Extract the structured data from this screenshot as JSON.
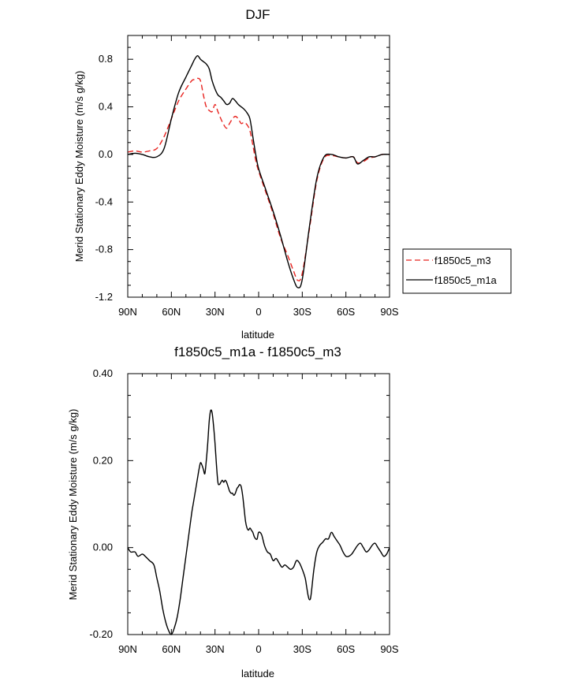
{
  "chart_data": [
    {
      "type": "line",
      "title": "DJF",
      "xlabel": "latitude",
      "ylabel": "Merid Stationary Eddy Moisture (m/s g/kg)",
      "xlim": [
        90,
        -90
      ],
      "ylim": [
        -1.2,
        1.0
      ],
      "xticks": [
        90,
        60,
        30,
        0,
        -30,
        -60,
        -90
      ],
      "xtick_labels": [
        "90N",
        "60N",
        "30N",
        "0",
        "30S",
        "60S",
        "90S"
      ],
      "yticks": [
        -1.2,
        -0.8,
        -0.4,
        0.0,
        0.4,
        0.8
      ],
      "ytick_labels": [
        "-1.2",
        "-0.8",
        "-0.4",
        "0.0",
        "0.4",
        "0.8"
      ],
      "legend": [
        "f1850c5_m3",
        "f1850c5_m1a"
      ],
      "series": [
        {
          "name": "f1850c5_m3",
          "color": "#e8231f",
          "dash": true,
          "x": [
            90,
            85,
            80,
            75,
            70,
            65,
            60,
            55,
            50,
            46,
            44,
            42,
            40,
            38,
            36,
            34,
            32,
            30,
            28,
            26,
            24,
            22,
            20,
            18,
            16,
            14,
            12,
            10,
            8,
            6,
            4,
            2,
            0,
            -5,
            -10,
            -15,
            -20,
            -24,
            -27,
            -30,
            -35,
            -40,
            -45,
            -50,
            -55,
            -60,
            -65,
            -68,
            -72,
            -76,
            -80,
            -85,
            -90
          ],
          "y": [
            0.02,
            0.03,
            0.02,
            0.03,
            0.05,
            0.15,
            0.3,
            0.45,
            0.55,
            0.62,
            0.63,
            0.64,
            0.62,
            0.5,
            0.4,
            0.37,
            0.36,
            0.42,
            0.36,
            0.3,
            0.25,
            0.22,
            0.26,
            0.3,
            0.32,
            0.3,
            0.26,
            0.27,
            0.25,
            0.2,
            0.08,
            -0.05,
            -0.14,
            -0.32,
            -0.5,
            -0.7,
            -0.85,
            -0.98,
            -1.06,
            -1.0,
            -0.62,
            -0.22,
            -0.03,
            -0.01,
            -0.02,
            -0.03,
            -0.02,
            -0.07,
            -0.06,
            -0.03,
            -0.02,
            0.0,
            0.0
          ]
        },
        {
          "name": "f1850c5_m1a",
          "color": "#000000",
          "dash": false,
          "x": [
            90,
            85,
            80,
            75,
            70,
            65,
            60,
            55,
            50,
            46,
            44,
            42,
            40,
            38,
            36,
            34,
            32,
            30,
            28,
            26,
            24,
            22,
            20,
            18,
            16,
            14,
            12,
            10,
            8,
            6,
            4,
            2,
            0,
            -5,
            -10,
            -15,
            -20,
            -24,
            -27,
            -30,
            -35,
            -40,
            -45,
            -50,
            -55,
            -60,
            -65,
            -68,
            -72,
            -76,
            -80,
            -85,
            -90
          ],
          "y": [
            0.0,
            0.01,
            0.0,
            -0.02,
            -0.02,
            0.05,
            0.3,
            0.52,
            0.65,
            0.75,
            0.8,
            0.83,
            0.8,
            0.78,
            0.76,
            0.72,
            0.62,
            0.55,
            0.5,
            0.48,
            0.45,
            0.42,
            0.43,
            0.47,
            0.45,
            0.42,
            0.4,
            0.38,
            0.35,
            0.3,
            0.15,
            0.0,
            -0.12,
            -0.3,
            -0.48,
            -0.68,
            -0.9,
            -1.05,
            -1.12,
            -1.05,
            -0.6,
            -0.2,
            -0.02,
            0.0,
            -0.02,
            -0.03,
            -0.02,
            -0.08,
            -0.05,
            -0.02,
            -0.02,
            0.0,
            0.0
          ]
        }
      ]
    },
    {
      "type": "line",
      "title": "f1850c5_m1a - f1850c5_m3",
      "xlabel": "latitude",
      "ylabel": "Merid Stationary Eddy Moisture (m/s g/kg)",
      "xlim": [
        90,
        -90
      ],
      "ylim": [
        -0.2,
        0.4
      ],
      "xticks": [
        90,
        60,
        30,
        0,
        -30,
        -60,
        -90
      ],
      "xtick_labels": [
        "90N",
        "60N",
        "30N",
        "0",
        "30S",
        "60S",
        "90S"
      ],
      "yticks": [
        -0.2,
        0.0,
        0.2,
        0.4
      ],
      "ytick_labels": [
        "-0.20",
        "0.00",
        "0.20",
        "0.40"
      ],
      "series": [
        {
          "name": "f1850c5_m1a - f1850c5_m3",
          "color": "#000000",
          "dash": false,
          "x": [
            90,
            88,
            85,
            83,
            80,
            78,
            75,
            72,
            70,
            68,
            66,
            64,
            62,
            60,
            58,
            56,
            54,
            52,
            50,
            48,
            46,
            45,
            44,
            43,
            42,
            41,
            40,
            39,
            38,
            37,
            36,
            35,
            34,
            33,
            32,
            31,
            30,
            29,
            28,
            27,
            26,
            25,
            24,
            23,
            22,
            21,
            20,
            19,
            18,
            17,
            16,
            15,
            14,
            13,
            12,
            11,
            10,
            9,
            8,
            7,
            6,
            5,
            4,
            3,
            2,
            1,
            0,
            -2,
            -4,
            -6,
            -8,
            -10,
            -12,
            -14,
            -16,
            -18,
            -20,
            -22,
            -24,
            -26,
            -28,
            -30,
            -32,
            -33,
            -34,
            -35,
            -36,
            -38,
            -40,
            -42,
            -44,
            -46,
            -48,
            -50,
            -52,
            -54,
            -56,
            -58,
            -60,
            -62,
            -64,
            -66,
            -68,
            -70,
            -72,
            -74,
            -76,
            -78,
            -80,
            -82,
            -84,
            -86,
            -88,
            -90
          ],
          "y": [
            0.0,
            -0.01,
            -0.01,
            -0.02,
            -0.015,
            -0.02,
            -0.03,
            -0.04,
            -0.07,
            -0.1,
            -0.14,
            -0.17,
            -0.19,
            -0.2,
            -0.185,
            -0.16,
            -0.12,
            -0.07,
            -0.02,
            0.03,
            0.08,
            0.1,
            0.12,
            0.14,
            0.16,
            0.18,
            0.195,
            0.19,
            0.18,
            0.17,
            0.2,
            0.24,
            0.29,
            0.315,
            0.31,
            0.28,
            0.24,
            0.19,
            0.15,
            0.145,
            0.15,
            0.155,
            0.15,
            0.155,
            0.15,
            0.14,
            0.13,
            0.125,
            0.125,
            0.12,
            0.125,
            0.135,
            0.14,
            0.145,
            0.14,
            0.12,
            0.09,
            0.06,
            0.045,
            0.04,
            0.045,
            0.04,
            0.035,
            0.025,
            0.02,
            0.02,
            0.035,
            0.03,
            0.005,
            -0.01,
            -0.015,
            -0.03,
            -0.025,
            -0.035,
            -0.045,
            -0.04,
            -0.045,
            -0.05,
            -0.045,
            -0.03,
            -0.035,
            -0.05,
            -0.07,
            -0.09,
            -0.11,
            -0.12,
            -0.11,
            -0.05,
            -0.01,
            0.005,
            0.012,
            0.02,
            0.02,
            0.035,
            0.025,
            0.015,
            0.005,
            -0.01,
            -0.02,
            -0.02,
            -0.015,
            -0.005,
            0.005,
            0.01,
            0.0,
            -0.01,
            -0.005,
            0.005,
            0.01,
            0.0,
            -0.01,
            -0.02,
            -0.015,
            0.0
          ]
        }
      ]
    }
  ]
}
